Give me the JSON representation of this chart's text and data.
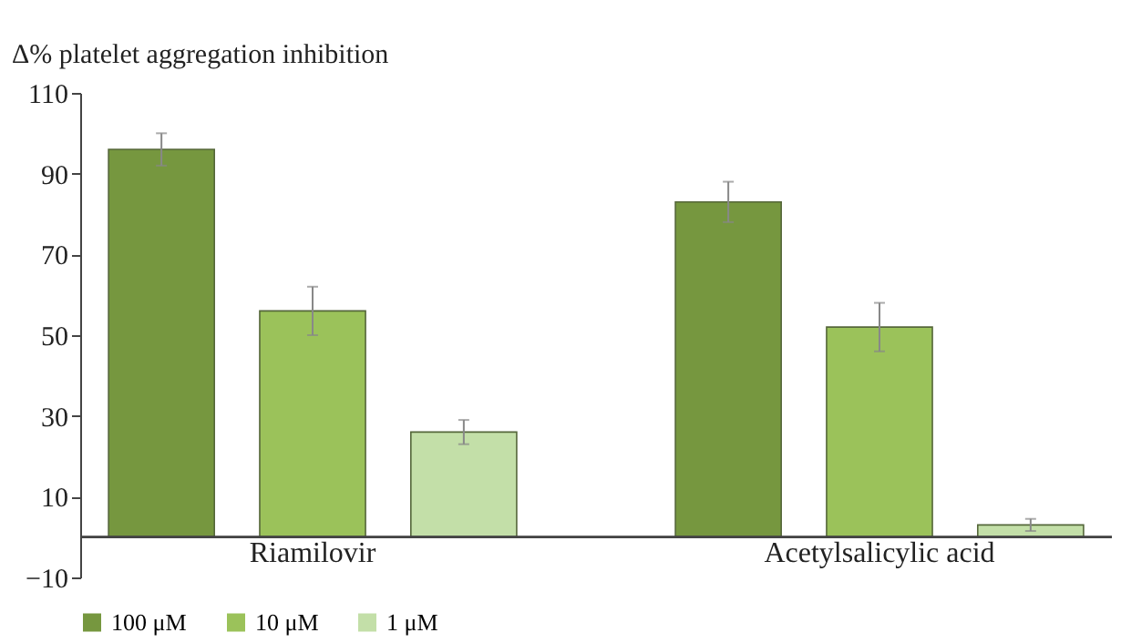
{
  "chart_data": {
    "type": "bar",
    "ylabel": "Δ% platelet aggregation inhibition",
    "categories": [
      "Riamilovir",
      "Acetylsalicylic acid"
    ],
    "series": [
      {
        "name": "100 μM",
        "color": "#76973f",
        "values": [
          96,
          83
        ],
        "errors": [
          4,
          5
        ]
      },
      {
        "name": "10 μM",
        "color": "#9bc25a",
        "values": [
          56,
          52
        ],
        "errors": [
          6,
          6
        ]
      },
      {
        "name": "1 μM",
        "color": "#c3dfa8",
        "values": [
          26,
          3
        ],
        "errors": [
          3,
          1.5
        ]
      }
    ],
    "ylim": [
      -10,
      110
    ],
    "yticks": [
      -10,
      10,
      30,
      50,
      70,
      90,
      110
    ],
    "grid": false,
    "legend": "bottom"
  }
}
